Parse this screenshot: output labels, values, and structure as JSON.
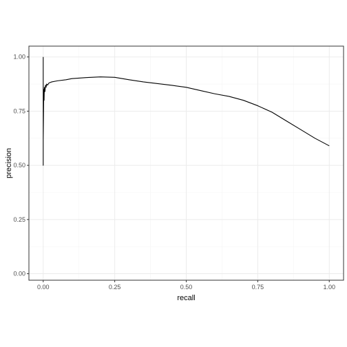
{
  "chart_data": {
    "type": "line",
    "title": "",
    "xlabel": "recall",
    "ylabel": "precision",
    "xlim": [
      -0.05,
      1.05
    ],
    "ylim": [
      -0.03,
      1.05
    ],
    "x_ticks": [
      0.0,
      0.25,
      0.5,
      0.75,
      1.0
    ],
    "x_tick_labels": [
      "0.00",
      "0.25",
      "0.50",
      "0.75",
      "1.00"
    ],
    "y_ticks": [
      0.0,
      0.25,
      0.5,
      0.75,
      1.0
    ],
    "y_tick_labels": [
      "0.00",
      "0.25",
      "0.50",
      "0.75",
      "1.00"
    ],
    "grid": true,
    "legend": "none",
    "colors": {
      "line": "#000000",
      "grid_major": "#ebebeb",
      "grid_minor": "#f5f5f5",
      "panel_border": "#333333"
    },
    "series": [
      {
        "x": [
          0.0,
          0.0,
          0.0,
          0.0,
          0.002,
          0.003,
          0.004,
          0.006,
          0.008,
          0.01,
          0.012,
          0.015,
          0.02,
          0.03,
          0.05,
          0.08,
          0.1,
          0.15,
          0.2,
          0.25,
          0.3,
          0.35,
          0.4,
          0.45,
          0.5,
          0.55,
          0.6,
          0.65,
          0.7,
          0.75,
          0.8,
          0.85,
          0.9,
          0.95,
          1.0
        ],
        "y": [
          1.0,
          0.5,
          0.72,
          0.62,
          0.85,
          0.8,
          0.86,
          0.84,
          0.87,
          0.86,
          0.875,
          0.87,
          0.88,
          0.885,
          0.89,
          0.895,
          0.9,
          0.905,
          0.908,
          0.906,
          0.895,
          0.885,
          0.877,
          0.869,
          0.86,
          0.845,
          0.83,
          0.818,
          0.8,
          0.775,
          0.745,
          0.705,
          0.665,
          0.625,
          0.59
        ]
      }
    ]
  }
}
